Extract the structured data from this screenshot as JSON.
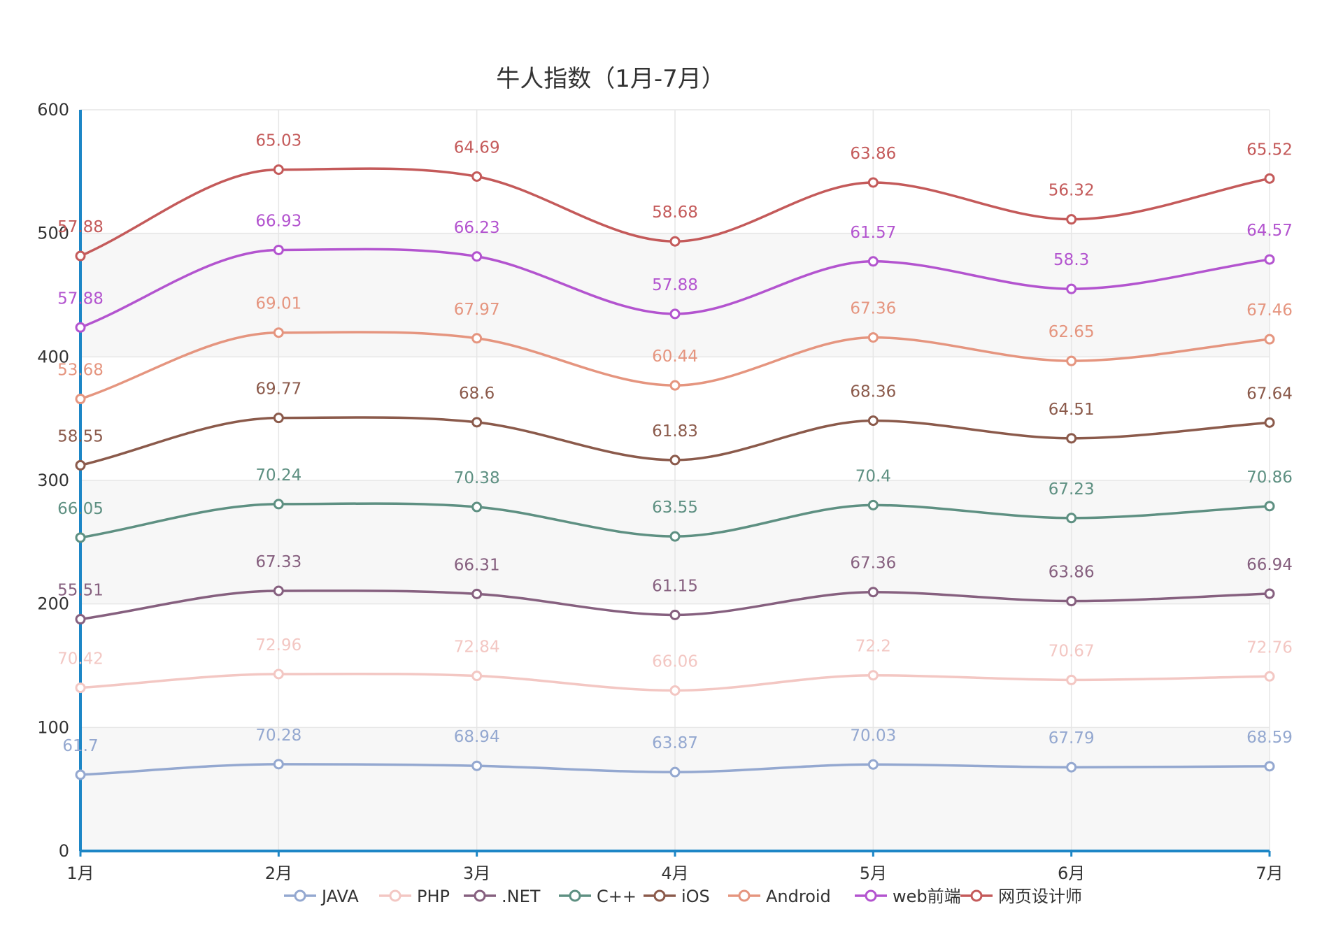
{
  "chart_data": {
    "type": "line",
    "title": "牛人指数（1月-7月）",
    "categories": [
      "1月",
      "2月",
      "3月",
      "4月",
      "5月",
      "6月",
      "7月"
    ],
    "stacked": true,
    "smooth": true,
    "ylim": [
      0,
      600
    ],
    "y_ticks": [
      "0",
      "100",
      "200",
      "300",
      "400",
      "500",
      "600"
    ],
    "y_tick_values": [
      0,
      100,
      200,
      300,
      400,
      500,
      600
    ],
    "xlabel": "",
    "ylabel": "",
    "grid": true,
    "legend_position": "bottom",
    "series": [
      {
        "name": "JAVA",
        "color": "#94a8d0",
        "values": [
          61.7,
          70.28,
          68.94,
          63.87,
          70.03,
          67.79,
          68.59
        ],
        "labels": [
          "61.7",
          "70.28",
          "68.94",
          "63.87",
          "70.03",
          "67.79",
          "68.59"
        ]
      },
      {
        "name": "PHP",
        "color": "#f3c7c3",
        "values": [
          70.42,
          72.96,
          72.84,
          66.06,
          72.2,
          70.67,
          72.76
        ],
        "labels": [
          "70.42",
          "72.96",
          "72.84",
          "66.06",
          "72.2",
          "70.67",
          "72.76"
        ]
      },
      {
        "name": ".NET",
        "color": "#86607f",
        "values": [
          55.51,
          67.33,
          66.31,
          61.15,
          67.36,
          63.86,
          66.94
        ],
        "labels": [
          "55.51",
          "67.33",
          "66.31",
          "61.15",
          "67.36",
          "63.86",
          "66.94"
        ]
      },
      {
        "name": "C++",
        "color": "#5e9082",
        "values": [
          66.05,
          70.24,
          70.38,
          63.55,
          70.4,
          67.23,
          70.86
        ],
        "labels": [
          "66.05",
          "70.24",
          "70.38",
          "63.55",
          "70.4",
          "67.23",
          "70.86"
        ]
      },
      {
        "name": "iOS",
        "color": "#8b5a4b",
        "values": [
          58.55,
          69.77,
          68.6,
          61.83,
          68.36,
          64.51,
          67.64
        ],
        "labels": [
          "58.55",
          "69.77",
          "68.6",
          "61.83",
          "68.36",
          "64.51",
          "67.64"
        ]
      },
      {
        "name": "Android",
        "color": "#e5957f",
        "values": [
          53.68,
          69.01,
          67.97,
          60.44,
          67.36,
          62.65,
          67.46
        ],
        "labels": [
          "53.68",
          "69.01",
          "67.97",
          "60.44",
          "67.36",
          "62.65",
          "67.46"
        ]
      },
      {
        "name": "web前端",
        "color": "#b354cf",
        "values": [
          57.88,
          66.93,
          66.23,
          57.88,
          61.57,
          58.3,
          64.57
        ],
        "labels": [
          "57.88",
          "66.93",
          "66.23",
          "57.88",
          "61.57",
          "58.3",
          "64.57"
        ]
      },
      {
        "name": "网页设计师",
        "color": "#c45a5a",
        "values": [
          57.88,
          65.03,
          64.69,
          58.68,
          63.86,
          56.32,
          65.52
        ],
        "labels": [
          "57.88",
          "65.03",
          "64.69",
          "58.68",
          "63.86",
          "56.32",
          "65.52"
        ]
      }
    ],
    "axis_color": "#1d86c6",
    "grid_color": "#e6e6e6",
    "band_color": "#f7f7f7"
  }
}
